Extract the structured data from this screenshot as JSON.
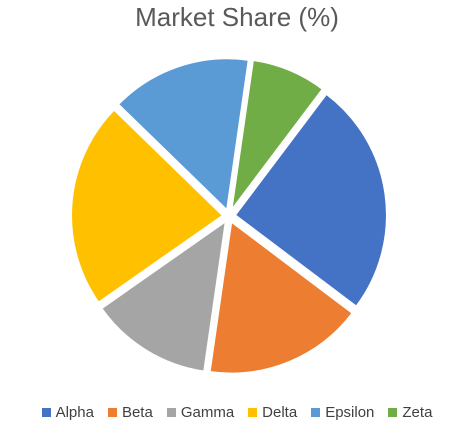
{
  "chart_data": {
    "type": "pie",
    "title": "Market Share (%)",
    "categories": [
      "Alpha",
      "Beta",
      "Gamma",
      "Delta",
      "Epsilon",
      "Zeta"
    ],
    "values": [
      25,
      17,
      13,
      22,
      15,
      8
    ],
    "colors": [
      "#4472C4",
      "#ED7D31",
      "#A5A5A5",
      "#FFC000",
      "#5B9BD5",
      "#70AD47"
    ],
    "exploded": true,
    "start_angle_deg": 37,
    "legend": "bottom"
  }
}
